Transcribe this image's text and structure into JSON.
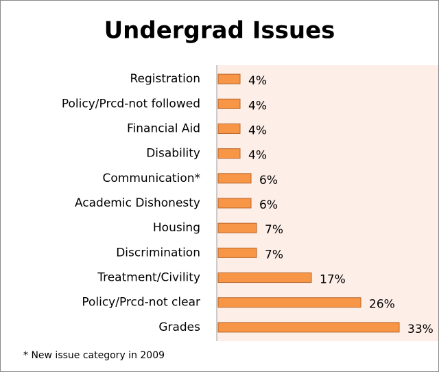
{
  "chart_data": {
    "type": "bar",
    "orientation": "horizontal",
    "title": "Undergrad Issues",
    "categories": [
      "Registration",
      "Policy/Prcd-not followed",
      "Financial Aid",
      "Disability",
      "Communication*",
      "Academic Dishonesty",
      "Housing",
      "Discrimination",
      "Treatment/Civility",
      "Policy/Prcd-not clear",
      "Grades"
    ],
    "values": [
      4,
      4,
      4,
      4,
      6,
      6,
      7,
      7,
      17,
      26,
      33
    ],
    "value_labels": [
      "4%",
      "4%",
      "4%",
      "4%",
      "6%",
      "6%",
      "7%",
      "7%",
      "17%",
      "26%",
      "33%"
    ],
    "color": "#f79646",
    "note": "* New issue category in 2009"
  }
}
